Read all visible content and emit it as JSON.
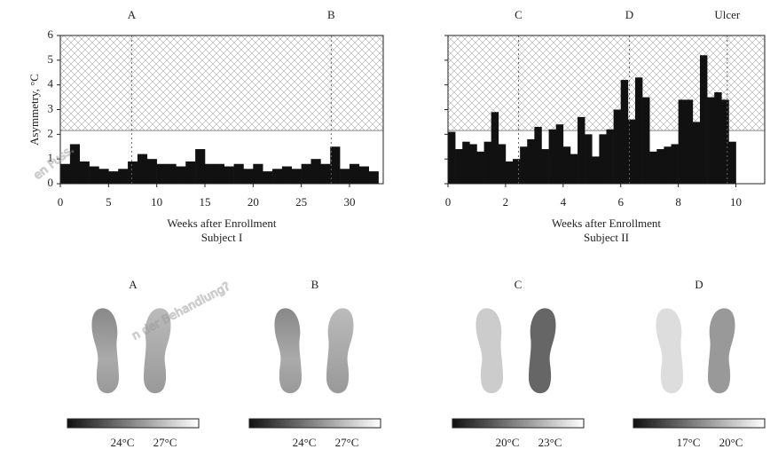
{
  "chart_data": [
    {
      "type": "bar",
      "xlabel": "Weeks after Enrollment",
      "subtitle": "Subject I",
      "ylabel": "Asymmetry, °C",
      "x": [
        0.5,
        1.5,
        2.5,
        3.5,
        4.5,
        5.5,
        6.5,
        7.5,
        8.5,
        9.5,
        10.5,
        11.5,
        12.5,
        13.5,
        14.5,
        15.5,
        16.5,
        17.5,
        18.5,
        19.5,
        20.5,
        21.5,
        22.5,
        23.5,
        24.5,
        25.5,
        26.5,
        27.5,
        28.5,
        29.5,
        30.5,
        31.5,
        32.5
      ],
      "values": [
        0.8,
        1.6,
        0.9,
        0.7,
        0.6,
        0.5,
        0.6,
        0.9,
        1.2,
        1.0,
        0.8,
        0.8,
        0.7,
        0.9,
        1.4,
        0.8,
        0.8,
        0.7,
        0.8,
        0.6,
        0.8,
        0.5,
        0.6,
        0.7,
        0.6,
        0.8,
        1.0,
        0.8,
        1.5,
        0.6,
        0.8,
        0.7,
        0.5
      ],
      "color": "#111111",
      "xlim": [
        0,
        33.5
      ],
      "xticks": [
        0,
        5,
        10,
        15,
        20,
        25,
        30
      ],
      "ylim": [
        0,
        6
      ],
      "yticks": [
        0,
        1,
        2,
        3,
        4,
        5,
        6
      ],
      "show_ytick_labels": true,
      "threshold": 2.15,
      "markers": [
        {
          "label": "A",
          "x": 7.4
        },
        {
          "label": "B",
          "x": 28.1
        }
      ]
    },
    {
      "type": "bar",
      "xlabel": "Weeks after Enrollment",
      "subtitle": "Subject II",
      "x": [
        0.125,
        0.375,
        0.625,
        0.875,
        1.125,
        1.375,
        1.625,
        1.875,
        2.125,
        2.375,
        2.625,
        2.875,
        3.125,
        3.375,
        3.625,
        3.875,
        4.125,
        4.375,
        4.625,
        4.875,
        5.125,
        5.375,
        5.625,
        5.875,
        6.125,
        6.375,
        6.625,
        6.875,
        7.125,
        7.375,
        7.625,
        7.875,
        8.125,
        8.375,
        8.625,
        8.875,
        9.125,
        9.375,
        9.625,
        9.875
      ],
      "values": [
        2.1,
        1.4,
        1.7,
        1.6,
        1.3,
        1.7,
        2.9,
        1.6,
        0.9,
        1.0,
        1.5,
        1.8,
        2.3,
        1.4,
        2.2,
        2.4,
        1.5,
        1.2,
        2.7,
        2.0,
        1.1,
        2.0,
        2.2,
        3.0,
        4.2,
        2.6,
        4.3,
        3.5,
        1.3,
        1.4,
        1.5,
        1.6,
        3.4,
        3.4,
        2.5,
        5.2,
        3.5,
        3.7,
        3.4,
        1.7
      ],
      "color": "#111111",
      "xlim": [
        0,
        11
      ],
      "xticks": [
        0,
        2,
        4,
        6,
        8,
        10
      ],
      "ylim": [
        0,
        6
      ],
      "yticks": [
        0,
        1,
        2,
        3,
        4,
        5,
        6
      ],
      "show_ytick_labels": false,
      "threshold": 2.15,
      "markers": [
        {
          "label": "C",
          "x": 2.45
        },
        {
          "label": "D",
          "x": 6.3
        },
        {
          "label": "Ulcer",
          "x": 9.7
        }
      ]
    }
  ],
  "panels": [
    {
      "label": "A",
      "scale": [
        "24°C",
        "27°C"
      ]
    },
    {
      "label": "B",
      "scale": [
        "24°C",
        "27°C"
      ]
    },
    {
      "label": "C",
      "scale": [
        "20°C",
        "23°C"
      ]
    },
    {
      "label": "D",
      "scale": [
        "17°C",
        "20°C"
      ]
    }
  ],
  "watermark": [
    "en Fuss.",
    "n der Behandlung?"
  ]
}
